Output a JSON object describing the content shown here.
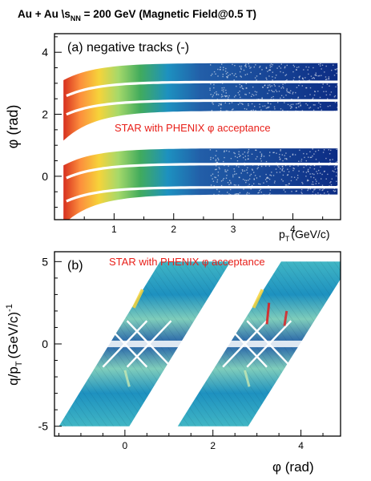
{
  "figure": {
    "title": "Au + Au   \\s",
    "title_sub": "NN",
    "title_rest": " = 200 GeV (Magnetic Field@0.5 T)"
  },
  "chart_data": [
    {
      "type": "heatmap",
      "panel_label": "(a) negative tracks (-)",
      "annotation": "STAR with PHENIX φ acceptance",
      "xlabel": "p",
      "xlabel_sub": "T",
      "xlabel_units": "(GeV/c)",
      "ylabel": "φ (rad)",
      "xlim": [
        0,
        4.8
      ],
      "ylim": [
        -1.4,
        4.6
      ],
      "xticks": [
        1,
        2,
        3,
        4
      ],
      "yticks": [
        0,
        2,
        4
      ],
      "bands": [
        {
          "phi_asymptote_low": 2.1,
          "phi_asymptote_high": 3.65,
          "gaps": [
            2.4,
            3.0
          ]
        },
        {
          "phi_asymptote_low": -0.6,
          "phi_asymptote_high": 0.9,
          "gaps": [
            -0.4,
            0.35
          ]
        }
      ],
      "colors": [
        "#d7301f",
        "#fc8d3c",
        "#f6d33a",
        "#a6d96a",
        "#41ab5d",
        "#1d91c0",
        "#225ea8",
        "#0c2c84"
      ]
    },
    {
      "type": "heatmap",
      "panel_label": "(b)",
      "annotation": "STAR with PHENIX φ acceptance",
      "xlabel": "φ (rad)",
      "ylabel": "q/p",
      "ylabel_sub": "T",
      "ylabel_units": "(GeV/c)",
      "ylabel_exp": "-1",
      "xlim": [
        -1.6,
        4.9
      ],
      "ylim": [
        -5.6,
        5.6
      ],
      "xticks": [
        0,
        2,
        4
      ],
      "yticks": [
        -5,
        0,
        5
      ],
      "regions": [
        {
          "phi_at_minus5": -1.5,
          "phi_at_plus5": 0.8,
          "width": 1.6
        },
        {
          "phi_at_minus5": 1.2,
          "phi_at_plus5": 3.55,
          "width": 1.6
        }
      ],
      "colors": [
        "#225ea8",
        "#1d91c0",
        "#41b6c4",
        "#7fcdbb",
        "#c7e9b4",
        "#ffeda0",
        "#e31a1c"
      ]
    }
  ]
}
